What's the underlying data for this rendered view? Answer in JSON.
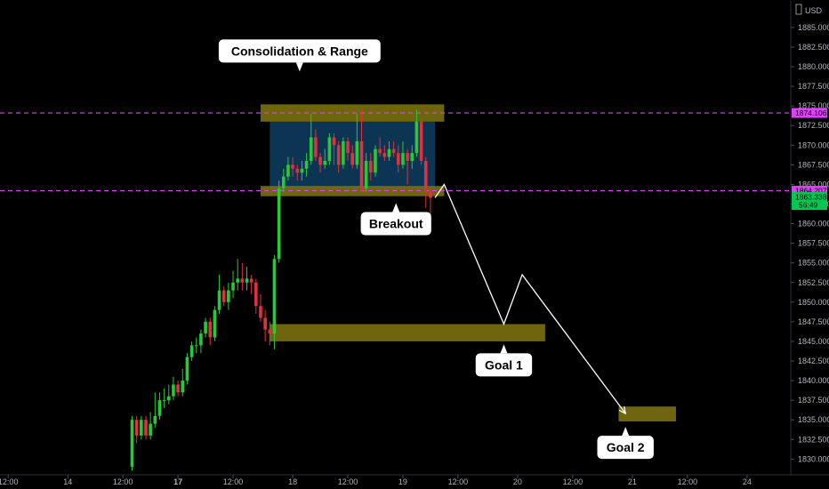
{
  "chart_data": {
    "type": "candlestick",
    "currency": "USD",
    "ylim": [
      1828.0,
      1888.5
    ],
    "y_ticks": [
      {
        "value": 1830,
        "label": "1830.000"
      },
      {
        "value": 1832.5,
        "label": "1832.500"
      },
      {
        "value": 1835,
        "label": "1835.000"
      },
      {
        "value": 1837.5,
        "label": "1837.500"
      },
      {
        "value": 1840,
        "label": "1840.000"
      },
      {
        "value": 1842.5,
        "label": "1842.500"
      },
      {
        "value": 1845,
        "label": "1845.000"
      },
      {
        "value": 1847.5,
        "label": "1847.500"
      },
      {
        "value": 1850,
        "label": "1850.000"
      },
      {
        "value": 1852.5,
        "label": "1852.500"
      },
      {
        "value": 1855,
        "label": "1855.000"
      },
      {
        "value": 1857.5,
        "label": "1857.500"
      },
      {
        "value": 1860,
        "label": "1860.000"
      },
      {
        "value": 1862.5,
        "label": "1862.500"
      },
      {
        "value": 1865,
        "label": "1865.000"
      },
      {
        "value": 1867.5,
        "label": "1867.500"
      },
      {
        "value": 1870,
        "label": "1870.000"
      },
      {
        "value": 1872.5,
        "label": "1872.500"
      },
      {
        "value": 1875,
        "label": "1875.000"
      },
      {
        "value": 1877.5,
        "label": "1877.500"
      },
      {
        "value": 1880,
        "label": "1880.000"
      },
      {
        "value": 1882.5,
        "label": "1882.500"
      },
      {
        "value": 1885,
        "label": "1885.000"
      }
    ],
    "x_ticks": [
      {
        "label": "12:00",
        "bar": -27,
        "bold": false
      },
      {
        "label": "14",
        "bar": -14,
        "bold": false
      },
      {
        "label": "12:00",
        "bar": -2,
        "bold": false
      },
      {
        "label": "17",
        "bar": 10,
        "bold": true
      },
      {
        "label": "12:00",
        "bar": 22,
        "bold": false
      },
      {
        "label": "18",
        "bar": 35,
        "bold": false
      },
      {
        "label": "12:00",
        "bar": 47,
        "bold": false
      },
      {
        "label": "19",
        "bar": 59,
        "bold": false
      },
      {
        "label": "12:00",
        "bar": 71,
        "bold": false
      },
      {
        "label": "20",
        "bar": 84,
        "bold": false
      },
      {
        "label": "12:00",
        "bar": 96,
        "bold": false
      },
      {
        "label": "21",
        "bar": 109,
        "bold": false
      },
      {
        "label": "12:00",
        "bar": 121,
        "bold": false
      },
      {
        "label": "24",
        "bar": 134,
        "bold": false
      }
    ],
    "candles": [
      [
        1829.0,
        1835.0,
        1828.5,
        1835.5
      ],
      [
        1835.0,
        1833.0,
        1832.0,
        1835.5
      ],
      [
        1833.0,
        1835.0,
        1832.5,
        1835.5
      ],
      [
        1835.0,
        1833.0,
        1832.5,
        1835.5
      ],
      [
        1833.0,
        1834.5,
        1832.5,
        1836.0
      ],
      [
        1834.5,
        1835.5,
        1834.0,
        1838.5
      ],
      [
        1835.5,
        1837.5,
        1835.0,
        1838.5
      ],
      [
        1837.5,
        1837.5,
        1836.5,
        1839.0
      ],
      [
        1837.5,
        1838.0,
        1837.0,
        1839.5
      ],
      [
        1838.0,
        1839.5,
        1837.5,
        1840.5
      ],
      [
        1839.5,
        1838.5,
        1838.0,
        1840.0
      ],
      [
        1838.5,
        1840.0,
        1838.0,
        1841.5
      ],
      [
        1840.0,
        1843.0,
        1839.5,
        1843.5
      ],
      [
        1843.0,
        1844.5,
        1842.5,
        1845.0
      ],
      [
        1844.5,
        1844.5,
        1843.5,
        1845.5
      ],
      [
        1844.5,
        1846.0,
        1843.5,
        1846.5
      ],
      [
        1846.0,
        1847.5,
        1845.5,
        1848.0
      ],
      [
        1847.5,
        1845.5,
        1844.5,
        1848.0
      ],
      [
        1845.5,
        1849.0,
        1845.0,
        1849.5
      ],
      [
        1849.0,
        1851.5,
        1848.5,
        1853.5
      ],
      [
        1851.5,
        1850.0,
        1849.5,
        1852.0
      ],
      [
        1850.0,
        1851.5,
        1849.0,
        1852.5
      ],
      [
        1851.5,
        1852.5,
        1850.5,
        1854.0
      ],
      [
        1852.5,
        1853.0,
        1851.5,
        1855.5
      ],
      [
        1853.0,
        1852.5,
        1851.5,
        1855.0
      ],
      [
        1852.5,
        1853.0,
        1851.5,
        1854.5
      ],
      [
        1853.0,
        1852.5,
        1851.0,
        1853.5
      ],
      [
        1852.5,
        1849.5,
        1848.5,
        1853.0
      ],
      [
        1849.5,
        1848.0,
        1847.5,
        1851.0
      ],
      [
        1848.0,
        1846.5,
        1845.0,
        1849.0
      ],
      [
        1846.5,
        1846.0,
        1844.5,
        1847.5
      ],
      [
        1846.0,
        1855.5,
        1844.0,
        1856.0
      ],
      [
        1855.5,
        1864.5,
        1855.0,
        1865.5
      ],
      [
        1864.5,
        1866.0,
        1864.0,
        1867.0
      ],
      [
        1866.0,
        1867.5,
        1865.5,
        1868.5
      ],
      [
        1867.5,
        1867.0,
        1866.0,
        1868.5
      ],
      [
        1867.0,
        1866.5,
        1865.5,
        1867.5
      ],
      [
        1866.5,
        1867.0,
        1865.5,
        1868.0
      ],
      [
        1867.0,
        1868.0,
        1866.0,
        1869.0
      ],
      [
        1868.0,
        1871.0,
        1867.5,
        1874.0
      ],
      [
        1871.0,
        1868.5,
        1868.0,
        1872.0
      ],
      [
        1868.5,
        1867.5,
        1866.5,
        1869.0
      ],
      [
        1867.5,
        1868.0,
        1867.0,
        1869.5
      ],
      [
        1868.0,
        1871.0,
        1867.5,
        1871.5
      ],
      [
        1871.0,
        1870.0,
        1867.5,
        1871.5
      ],
      [
        1870.0,
        1867.5,
        1866.5,
        1870.5
      ],
      [
        1867.5,
        1870.5,
        1867.0,
        1871.0
      ],
      [
        1870.5,
        1869.0,
        1868.0,
        1871.0
      ],
      [
        1869.0,
        1867.5,
        1867.0,
        1870.0
      ],
      [
        1867.5,
        1870.5,
        1867.0,
        1874.0
      ],
      [
        1870.5,
        1864.5,
        1864.0,
        1874.5
      ],
      [
        1864.5,
        1868.0,
        1864.0,
        1869.0
      ],
      [
        1868.0,
        1866.5,
        1865.5,
        1869.0
      ],
      [
        1866.5,
        1869.5,
        1866.0,
        1870.0
      ],
      [
        1869.5,
        1869.0,
        1868.5,
        1871.0
      ],
      [
        1869.0,
        1868.5,
        1868.0,
        1870.0
      ],
      [
        1868.5,
        1869.5,
        1868.0,
        1870.5
      ],
      [
        1869.5,
        1869.0,
        1868.5,
        1870.5
      ],
      [
        1869.0,
        1867.5,
        1866.5,
        1870.0
      ],
      [
        1867.5,
        1869.0,
        1867.0,
        1870.5
      ],
      [
        1869.0,
        1868.0,
        1865.0,
        1869.5
      ],
      [
        1868.0,
        1869.0,
        1867.0,
        1870.0
      ],
      [
        1869.0,
        1873.0,
        1868.5,
        1874.5
      ],
      [
        1873.0,
        1868.0,
        1867.5,
        1873.5
      ],
      [
        1868.0,
        1864.0,
        1862.0,
        1868.5
      ],
      [
        1864.0,
        1863.3,
        1861.0,
        1864.5
      ]
    ],
    "series": [
      {
        "name": "USD",
        "type": "candlestick"
      }
    ],
    "lines": {
      "upper_value": 1874.106,
      "lower_value": 1864.207,
      "color": "#e040fb"
    },
    "zones": [
      {
        "name": "consolidation-range",
        "from_bar": 30,
        "to_bar": 66,
        "low": 1864.5,
        "high": 1873.0,
        "color": "#0d3a5c"
      },
      {
        "name": "range-top-band",
        "from_bar": 28,
        "to_bar": 68,
        "low": 1873.0,
        "high": 1875.2,
        "color": "#7a7010"
      },
      {
        "name": "range-bottom-band",
        "from_bar": 28,
        "to_bar": 68,
        "low": 1863.5,
        "high": 1864.8,
        "color": "#7a7010"
      },
      {
        "name": "goal-1-zone",
        "from_bar": 30,
        "to_bar": 90,
        "low": 1845.0,
        "high": 1847.2,
        "color": "#7a7010"
      },
      {
        "name": "goal-2-zone",
        "from_bar": 106,
        "to_bar": 118.5,
        "low": 1834.8,
        "high": 1836.7,
        "color": "#7a7010"
      }
    ],
    "projection_path": [
      {
        "bar": 66,
        "value": 1863.3
      },
      {
        "bar": 68,
        "value": 1865.0
      },
      {
        "bar": 81,
        "value": 1847.2
      },
      {
        "bar": 85,
        "value": 1853.5
      },
      {
        "bar": 107.5,
        "value": 1835.8
      }
    ],
    "price_tags": [
      {
        "value": 1874.106,
        "label": "1874.106",
        "bg": "#e040fb",
        "fg": "#000000"
      },
      {
        "value": 1864.207,
        "label": "1864.207",
        "bg": "#e040fb",
        "fg": "#000000"
      },
      {
        "value": 1863.338,
        "label": "1863.338",
        "sub": "56:49",
        "bg": "#00c853",
        "fg": "#000000"
      }
    ],
    "annotations": [
      {
        "name": "consolidation-callout",
        "text": "Consolidation & Range",
        "bar": 36.5,
        "value": 1882.0,
        "pointer": "down"
      },
      {
        "name": "breakout-callout",
        "text": "Breakout",
        "bar": 57.5,
        "value": 1860.0,
        "pointer": "up"
      },
      {
        "name": "goal-1-callout",
        "text": "Goal 1",
        "bar": 81,
        "value": 1842.0,
        "pointer": "up"
      },
      {
        "name": "goal-2-callout",
        "text": "Goal 2",
        "bar": 107.5,
        "value": 1831.5,
        "pointer": "up"
      }
    ],
    "colors": {
      "up": "#26c93a",
      "down": "#e0313f",
      "wick_up": "#26c93a",
      "wick_down": "#e0313f",
      "axis_text": "#b2b5be",
      "projection": "#ffffff",
      "callout_bg": "#ffffff"
    },
    "title": "",
    "xlabel": "",
    "ylabel": "",
    "grid": false,
    "legend": "none"
  }
}
